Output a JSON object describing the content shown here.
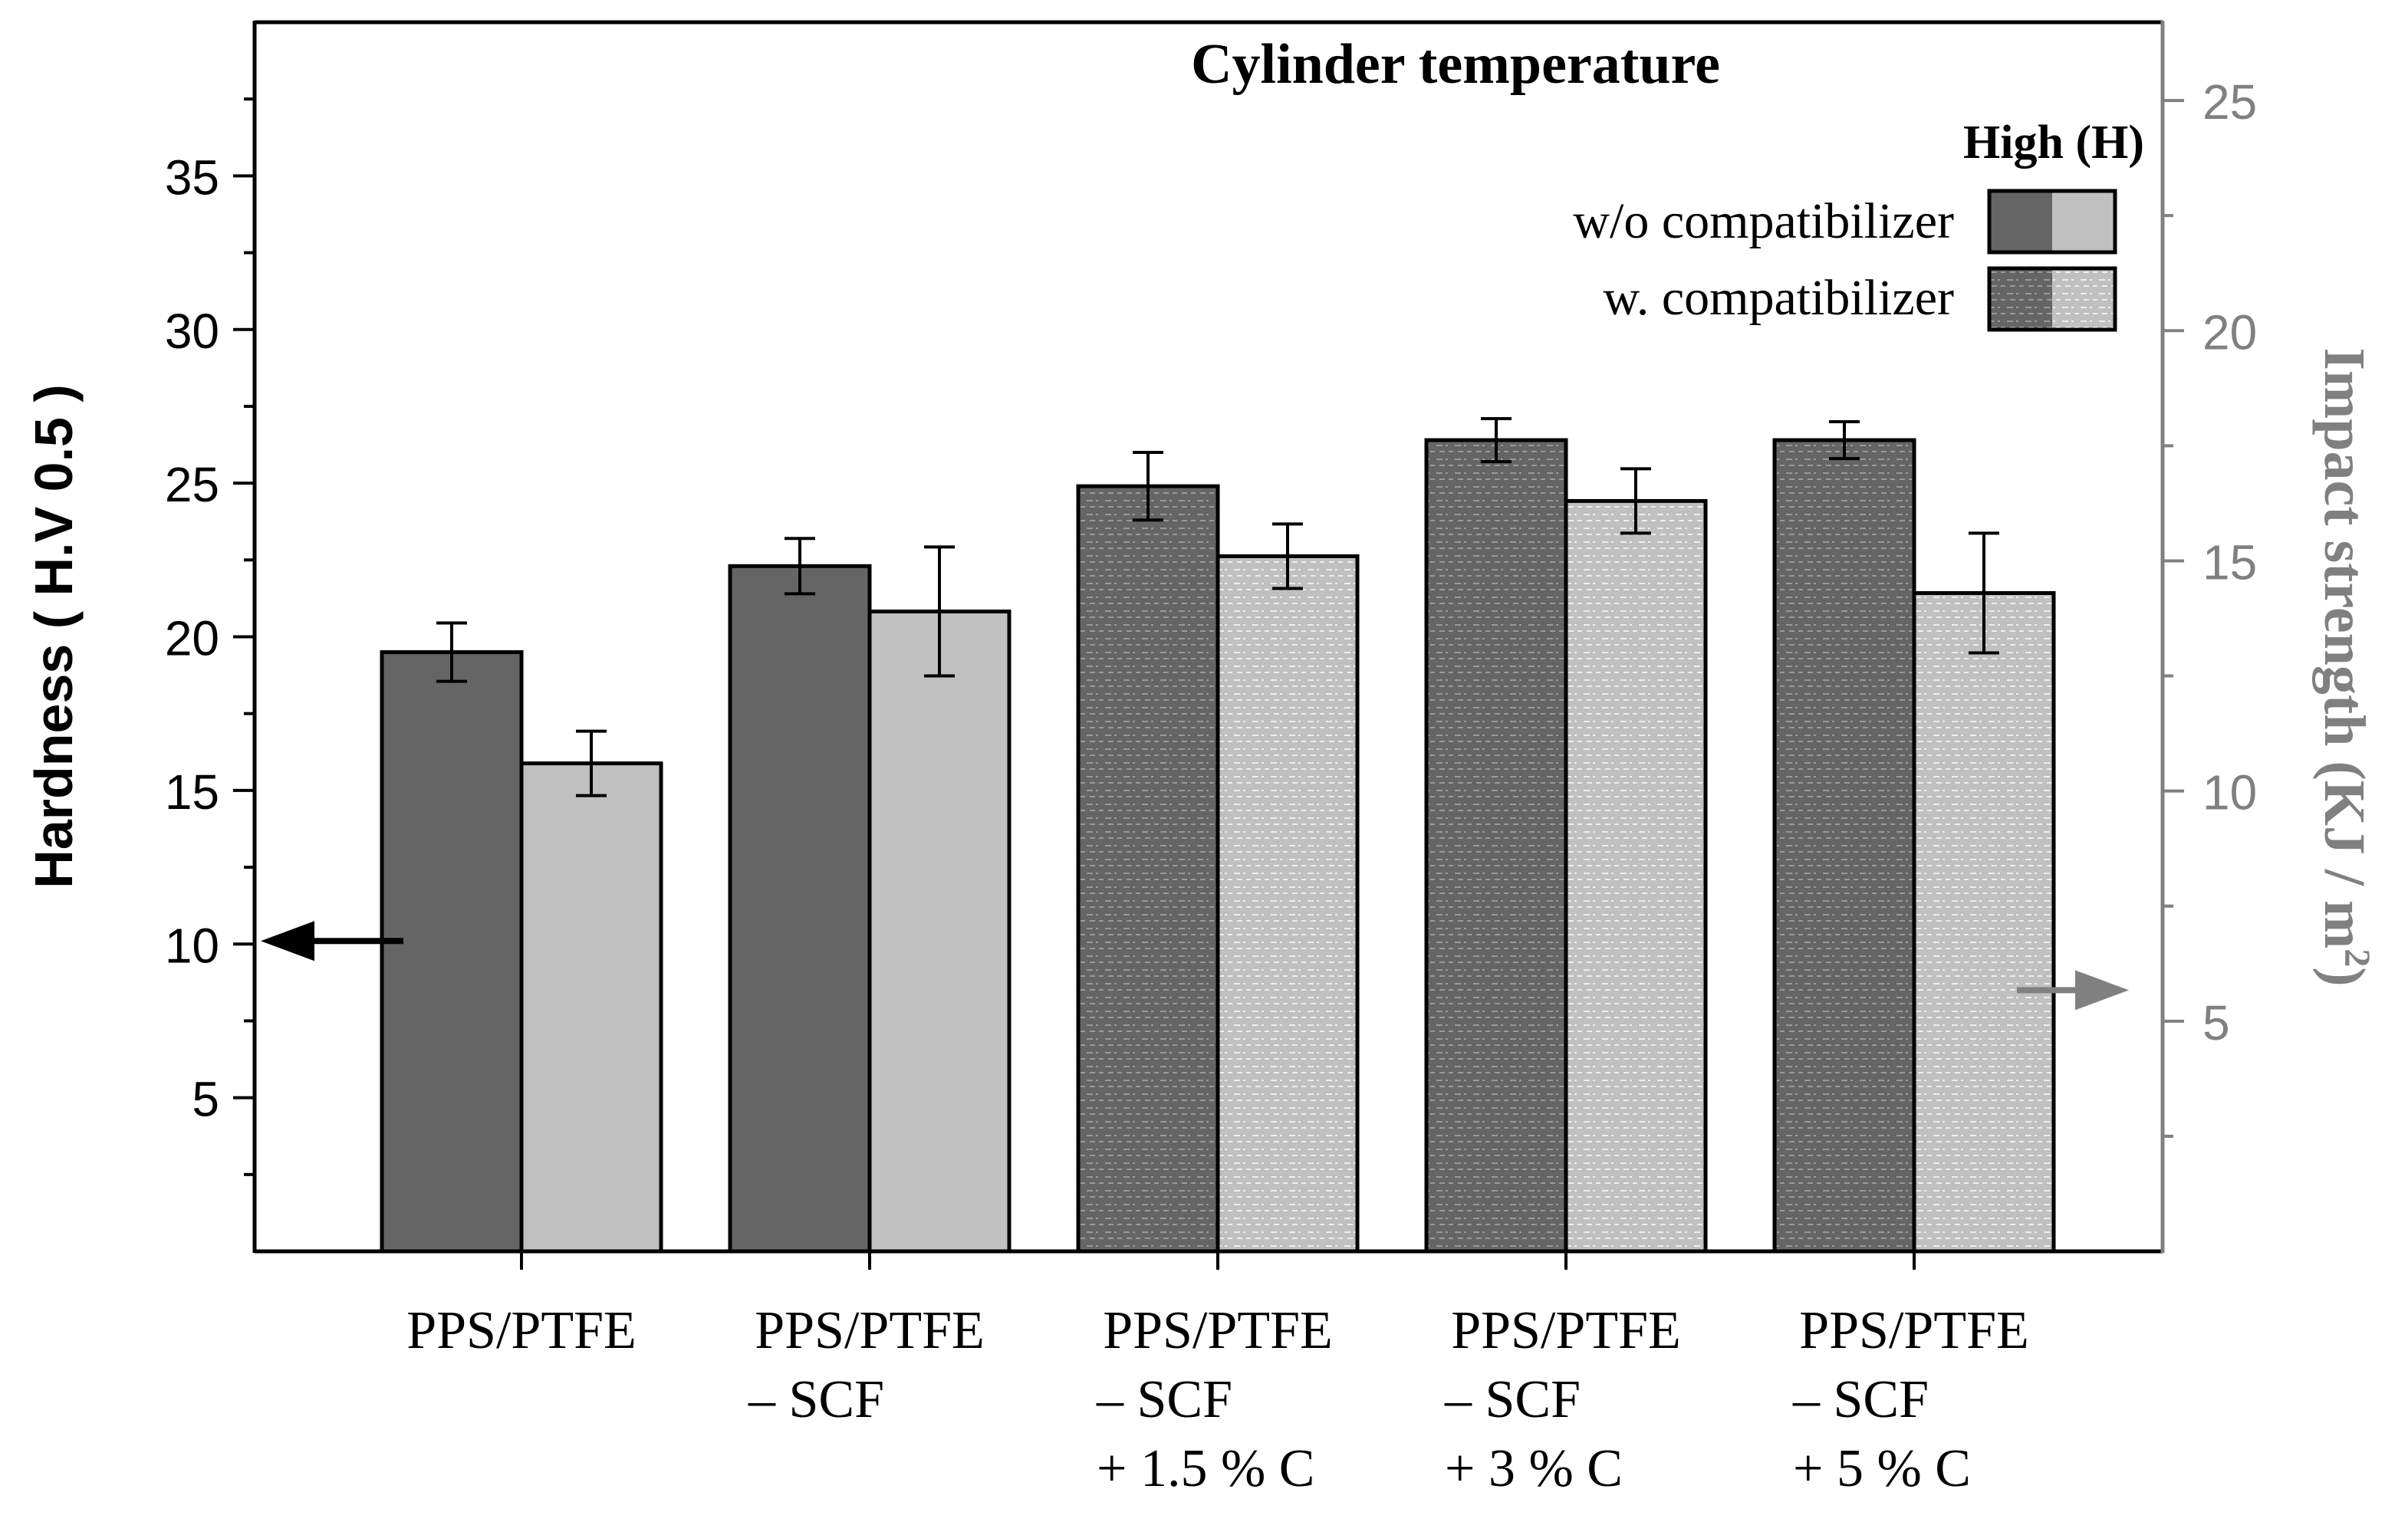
{
  "chart_data": {
    "type": "bar",
    "title": "Cylinder temperature",
    "legend": {
      "title": "High (H)",
      "placement": "top-right",
      "entries": [
        "w/o compatibilizer",
        "w. compatibilizer"
      ]
    },
    "categories": [
      [
        "PPS/PTFE"
      ],
      [
        "PPS/PTFE",
        "– SCF"
      ],
      [
        "PPS/PTFE",
        "– SCF",
        "+ 1.5 % C"
      ],
      [
        "PPS/PTFE",
        "– SCF",
        "+ 3 % C"
      ],
      [
        "PPS/PTFE",
        "– SCF",
        "+ 5 % C"
      ]
    ],
    "compatibilizer": [
      false,
      false,
      true,
      true,
      true
    ],
    "series": [
      {
        "name": "Hardness",
        "axis": "left",
        "color": "#656565",
        "values": [
          19.5,
          22.3,
          24.9,
          26.4,
          26.4
        ],
        "errors": [
          0.95,
          0.9,
          1.1,
          0.7,
          0.6
        ]
      },
      {
        "name": "Impact strength",
        "axis": "right",
        "color": "#c0c0c0",
        "values": [
          10.6,
          13.9,
          15.1,
          16.3,
          14.3
        ],
        "errors": [
          0.7,
          1.4,
          0.7,
          0.7,
          1.3
        ]
      }
    ],
    "left_axis": {
      "label": "Hardness ( H.V 0.5 )",
      "ylim": [
        0,
        40
      ],
      "ticks": [
        5,
        10,
        15,
        20,
        25,
        30,
        35
      ]
    },
    "right_axis": {
      "label": "Impact strength (KJ / m",
      "label_sup": "2",
      "label_end": ")",
      "ylim": [
        0,
        26.7
      ],
      "ticks": [
        5,
        10,
        15,
        20,
        25
      ],
      "color": "#808080"
    },
    "arrows": [
      {
        "direction": "left",
        "axis": "left",
        "y": 10.1,
        "color": "#000000"
      },
      {
        "direction": "right",
        "axis": "left",
        "y": 8.5,
        "color": "#808080"
      }
    ]
  }
}
